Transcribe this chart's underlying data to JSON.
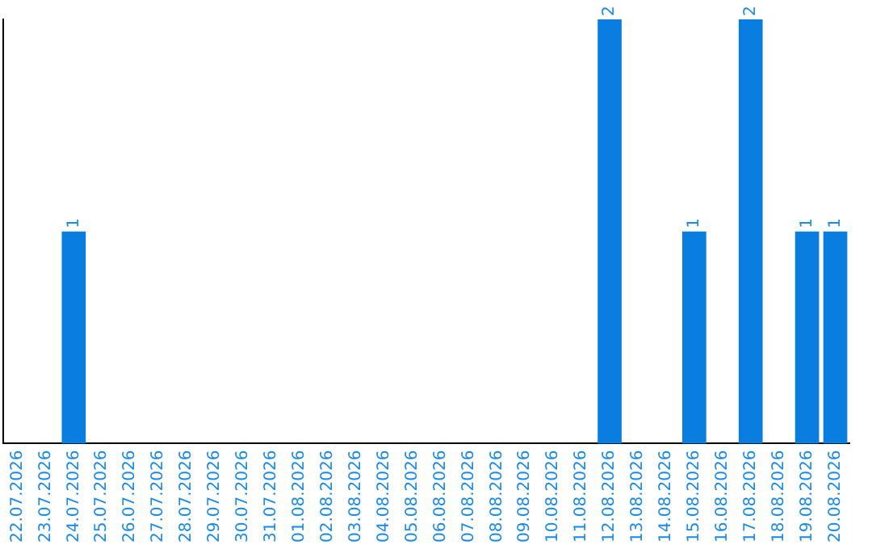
{
  "chart_data": {
    "type": "bar",
    "categories": [
      "22.07.2026",
      "23.07.2026",
      "24.07.2026",
      "25.07.2026",
      "26.07.2026",
      "27.07.2026",
      "28.07.2026",
      "29.07.2026",
      "30.07.2026",
      "31.07.2026",
      "01.08.2026",
      "02.08.2026",
      "03.08.2026",
      "04.08.2026",
      "05.08.2026",
      "06.08.2026",
      "07.08.2026",
      "08.08.2026",
      "09.08.2026",
      "10.08.2026",
      "11.08.2026",
      "12.08.2026",
      "13.08.2026",
      "14.08.2026",
      "15.08.2026",
      "16.08.2026",
      "17.08.2026",
      "18.08.2026",
      "19.08.2026",
      "20.08.2026"
    ],
    "values": [
      0,
      0,
      1,
      0,
      0,
      0,
      0,
      0,
      0,
      0,
      0,
      0,
      0,
      0,
      0,
      0,
      0,
      0,
      0,
      0,
      0,
      2,
      0,
      0,
      1,
      0,
      2,
      0,
      1,
      1
    ],
    "value_labels": [
      null,
      null,
      "1",
      null,
      null,
      null,
      null,
      null,
      null,
      null,
      null,
      null,
      null,
      null,
      null,
      null,
      null,
      null,
      null,
      null,
      null,
      "2",
      null,
      null,
      "1",
      null,
      "2",
      null,
      "1",
      "1"
    ],
    "color": "#0a7de0",
    "grid": false,
    "legend": false
  }
}
